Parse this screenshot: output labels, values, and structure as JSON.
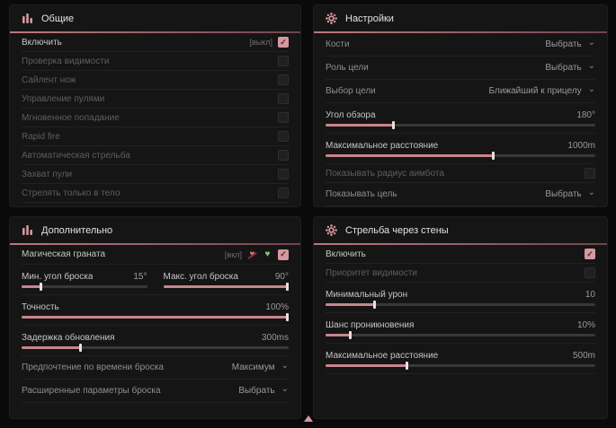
{
  "colors": {
    "accent": "#d698a0",
    "slider_fill": "#c9858d",
    "panel_bg": "#151515",
    "page_bg": "#0a0a0a"
  },
  "panels": [
    {
      "id": "general",
      "title": "Общие",
      "icon": "sliders-icon",
      "rows": [
        {
          "type": "checkbox",
          "label": "Включить",
          "bracket": "[выкл]",
          "checked": true,
          "tone": "bright"
        },
        {
          "type": "checkbox",
          "label": "Проверка видимости",
          "checked": false,
          "tone": "dim"
        },
        {
          "type": "checkbox",
          "label": "Сайлент нож",
          "checked": false,
          "tone": "dim"
        },
        {
          "type": "checkbox",
          "label": "Управление пулями",
          "checked": false,
          "tone": "dim"
        },
        {
          "type": "checkbox",
          "label": "Мгновенное попадание",
          "checked": false,
          "tone": "dim"
        },
        {
          "type": "checkbox",
          "label": "Rapid fire",
          "checked": false,
          "tone": "dim"
        },
        {
          "type": "checkbox",
          "label": "Автоматическая стрельба",
          "checked": false,
          "tone": "dim"
        },
        {
          "type": "checkbox",
          "label": "Захват пули",
          "checked": false,
          "tone": "dim"
        },
        {
          "type": "checkbox",
          "label": "Стрелять только в тело",
          "checked": false,
          "tone": "dim"
        }
      ]
    },
    {
      "id": "settings",
      "title": "Настройки",
      "icon": "gear-icon",
      "rows": [
        {
          "type": "dropdown",
          "label": "Кости",
          "value": "Выбрать",
          "tone": "mid"
        },
        {
          "type": "dropdown",
          "label": "Роль цели",
          "value": "Выбрать",
          "tone": "mid"
        },
        {
          "type": "dropdown",
          "label": "Выбор цели",
          "value": "Ближайший к прицелу",
          "tone": "mid"
        },
        {
          "type": "slider",
          "label": "Угол обзора",
          "value": "180°",
          "fill": 25,
          "tone": "bright"
        },
        {
          "type": "slider",
          "label": "Максимальное расстояние",
          "value": "1000m",
          "fill": 62,
          "tone": "bright"
        },
        {
          "type": "checkbox",
          "label": "Показывать радиус аимбота",
          "checked": false,
          "tone": "dim"
        },
        {
          "type": "dropdown",
          "label": "Показывать цель",
          "value": "Выбрать",
          "tone": "mid"
        }
      ]
    },
    {
      "id": "additional",
      "title": "Дополнительно",
      "icon": "sliders-icon",
      "rows": [
        {
          "type": "checkbox",
          "label": "Магическая граната",
          "bracket": "[вкл]",
          "checked": true,
          "tone": "bright",
          "icons": [
            "heart-slash-icon",
            "heart-check-icon"
          ]
        },
        {
          "type": "slider-pair",
          "items": [
            {
              "label": "Мин. угол броска",
              "value": "15°",
              "fill": 15,
              "tone": "bright"
            },
            {
              "label": "Макс. угол броска",
              "value": "90°",
              "fill": 100,
              "tone": "bright"
            }
          ]
        },
        {
          "type": "slider",
          "label": "Точность",
          "value": "100%",
          "fill": 100,
          "tone": "bright"
        },
        {
          "type": "slider",
          "label": "Задержка обновления",
          "value": "300ms",
          "fill": 22,
          "tone": "bright"
        },
        {
          "type": "dropdown",
          "label": "Предпочтение по времени броска",
          "value": "Максимум",
          "tone": "mid"
        },
        {
          "type": "dropdown",
          "label": "Расширенные параметры броска",
          "value": "Выбрать",
          "tone": "mid"
        }
      ]
    },
    {
      "id": "wallbang",
      "title": "Стрельба через стены",
      "icon": "gear-icon",
      "rows": [
        {
          "type": "checkbox",
          "label": "Включить",
          "checked": true,
          "tone": "bright"
        },
        {
          "type": "checkbox",
          "label": "Приоритет видимости",
          "checked": false,
          "tone": "dim"
        },
        {
          "type": "slider",
          "label": "Минимальный урон",
          "value": "10",
          "fill": 18,
          "tone": "bright"
        },
        {
          "type": "slider",
          "label": "Шанс проникновения",
          "value": "10%",
          "fill": 9,
          "tone": "bright"
        },
        {
          "type": "slider",
          "label": "Максимальное расстояние",
          "value": "500m",
          "fill": 30,
          "tone": "bright"
        }
      ]
    }
  ],
  "dropdown_chevron": "⌄",
  "checkmark": "✓",
  "heart_glyph": "♥"
}
